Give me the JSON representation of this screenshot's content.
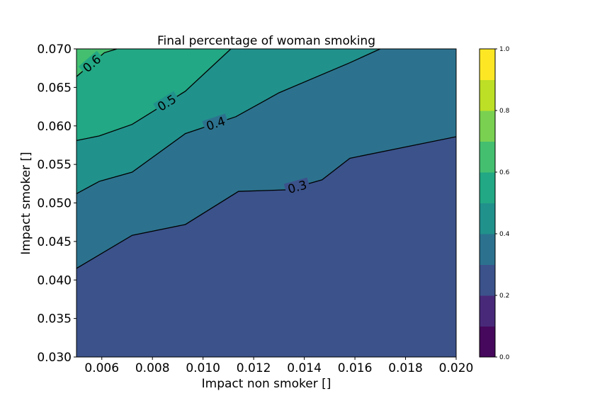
{
  "chart_data": {
    "type": "contour",
    "title": "Final percentage of woman smoking",
    "xlabel": "Impact non smoker []",
    "ylabel": "Impact smoker []",
    "xlim": [
      0.005,
      0.02
    ],
    "ylim": [
      0.03,
      0.07
    ],
    "x_ticks": [
      "0.006",
      "0.008",
      "0.010",
      "0.012",
      "0.014",
      "0.016",
      "0.018",
      "0.020"
    ],
    "y_ticks": [
      "0.030",
      "0.035",
      "0.040",
      "0.045",
      "0.050",
      "0.055",
      "0.060",
      "0.065",
      "0.070"
    ],
    "colorbar": {
      "range": [
        0.0,
        1.0
      ],
      "ticks": [
        "0.0",
        "0.2",
        "0.4",
        "0.6",
        "0.8",
        "1.0"
      ],
      "levels": [
        0.0,
        0.1,
        0.2,
        0.3,
        0.4,
        0.5,
        0.6,
        0.7,
        0.8,
        0.9,
        1.0
      ],
      "colors": [
        "#46085c",
        "#482979",
        "#3b528b",
        "#2c728e",
        "#21918c",
        "#22a884",
        "#44bf70",
        "#7ad151",
        "#bddf26",
        "#fde725"
      ]
    },
    "contour_lines": [
      {
        "level": 0.3,
        "label": "0.3",
        "points": [
          [
            0.005,
            0.0415
          ],
          [
            0.0072,
            0.0458
          ],
          [
            0.0093,
            0.0472
          ],
          [
            0.0114,
            0.0515
          ],
          [
            0.0133,
            0.0517
          ],
          [
            0.0147,
            0.053
          ],
          [
            0.0158,
            0.0558
          ],
          [
            0.02,
            0.0586
          ]
        ]
      },
      {
        "level": 0.4,
        "label": "0.4",
        "points": [
          [
            0.005,
            0.0512
          ],
          [
            0.0059,
            0.0528
          ],
          [
            0.0072,
            0.054
          ],
          [
            0.0093,
            0.059
          ],
          [
            0.0113,
            0.0612
          ],
          [
            0.013,
            0.0643
          ],
          [
            0.0158,
            0.0682
          ],
          [
            0.017,
            0.07
          ]
        ]
      },
      {
        "level": 0.5,
        "label": "0.5",
        "points": [
          [
            0.005,
            0.0581
          ],
          [
            0.0059,
            0.0587
          ],
          [
            0.0072,
            0.0602
          ],
          [
            0.0093,
            0.0645
          ],
          [
            0.0111,
            0.07
          ]
        ]
      },
      {
        "level": 0.6,
        "label": "0.6",
        "points": [
          [
            0.005,
            0.0664
          ],
          [
            0.0061,
            0.0695
          ],
          [
            0.0066,
            0.07
          ]
        ]
      }
    ],
    "band_colors": {
      "0.2-0.3": "#3b528b",
      "0.3-0.4": "#2c728e",
      "0.4-0.5": "#21918c",
      "0.5-0.6": "#22a884",
      "0.6-0.7": "#44bf70"
    }
  }
}
